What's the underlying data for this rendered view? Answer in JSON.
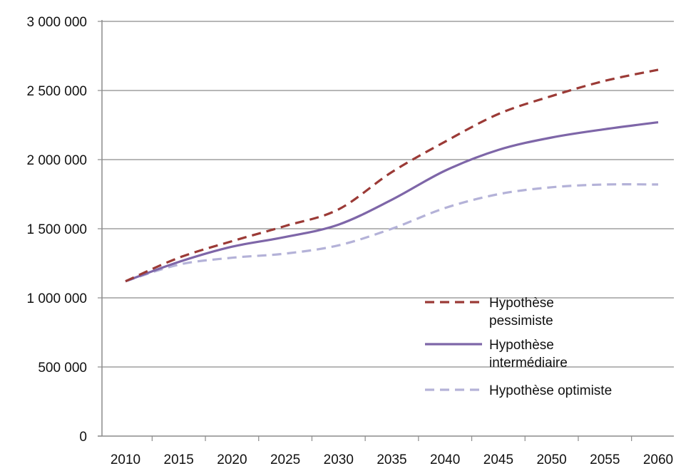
{
  "chart_data": {
    "type": "line",
    "categories": [
      "2010",
      "2015",
      "2020",
      "2025",
      "2030",
      "2035",
      "2040",
      "2045",
      "2050",
      "2055",
      "2060"
    ],
    "y_tick_labels": [
      "0",
      "500 000",
      "1 000 000",
      "1 500 000",
      "2 000 000",
      "2 500 000",
      "3 000 000"
    ],
    "ylim": [
      0,
      3000000
    ],
    "grid": true,
    "legend_position": "bottom-right inside plot",
    "series": [
      {
        "name": "Hypothèse pessimiste",
        "legend_lines": [
          "Hypothèse",
          "pessimiste"
        ],
        "color": "#9b3a36",
        "style": "dashed",
        "values": [
          1120000,
          1290000,
          1410000,
          1520000,
          1640000,
          1910000,
          2130000,
          2330000,
          2460000,
          2570000,
          2650000
        ]
      },
      {
        "name": "Hypothèse intermédiaire",
        "legend_lines": [
          "Hypothèse",
          "intermédiaire"
        ],
        "color": "#7e66a8",
        "style": "solid",
        "values": [
          1120000,
          1260000,
          1370000,
          1440000,
          1530000,
          1710000,
          1920000,
          2070000,
          2160000,
          2220000,
          2270000
        ]
      },
      {
        "name": "Hypothèse optimiste",
        "legend_lines": [
          "Hypothèse optimiste"
        ],
        "color": "#b4b2d8",
        "style": "dashed",
        "values": [
          1120000,
          1240000,
          1290000,
          1320000,
          1380000,
          1500000,
          1650000,
          1750000,
          1800000,
          1820000,
          1820000
        ]
      }
    ]
  }
}
